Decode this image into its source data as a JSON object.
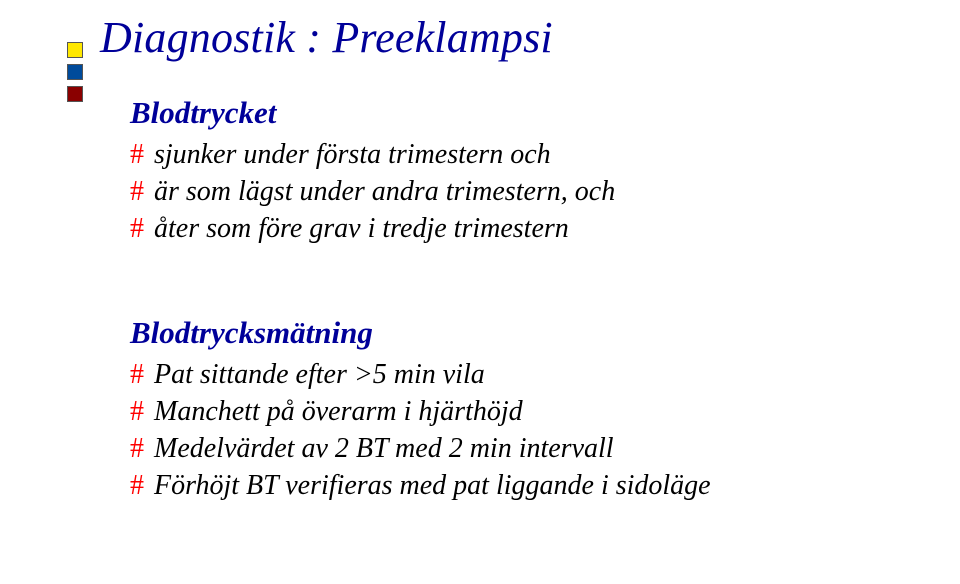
{
  "colors": {
    "title": "#000099",
    "subhead": "#000099",
    "body": "#000000",
    "hash": "#ff0000",
    "bullet_squares": [
      "#ffe800",
      "#004b9b",
      "#8a0000"
    ]
  },
  "sizes": {
    "title_fontsize": 44,
    "subhead_fontsize": 31,
    "body_fontsize": 28
  },
  "title": "Diagnostik : Preeklampsi",
  "blocks": [
    {
      "heading": "Blodtrycket",
      "items": [
        "sjunker under första trimestern och",
        "är som lägst under andra trimestern, och",
        "åter som före grav i tredje trimestern"
      ]
    },
    {
      "heading": "Blodtrycksmätning",
      "items": [
        "Pat sittande efter >5 min vila",
        "Manchett på överarm i hjärthöjd",
        "Medelvärdet av 2 BT med 2 min intervall",
        "Förhöjt BT verifieras med pat liggande i sidoläge"
      ]
    }
  ]
}
